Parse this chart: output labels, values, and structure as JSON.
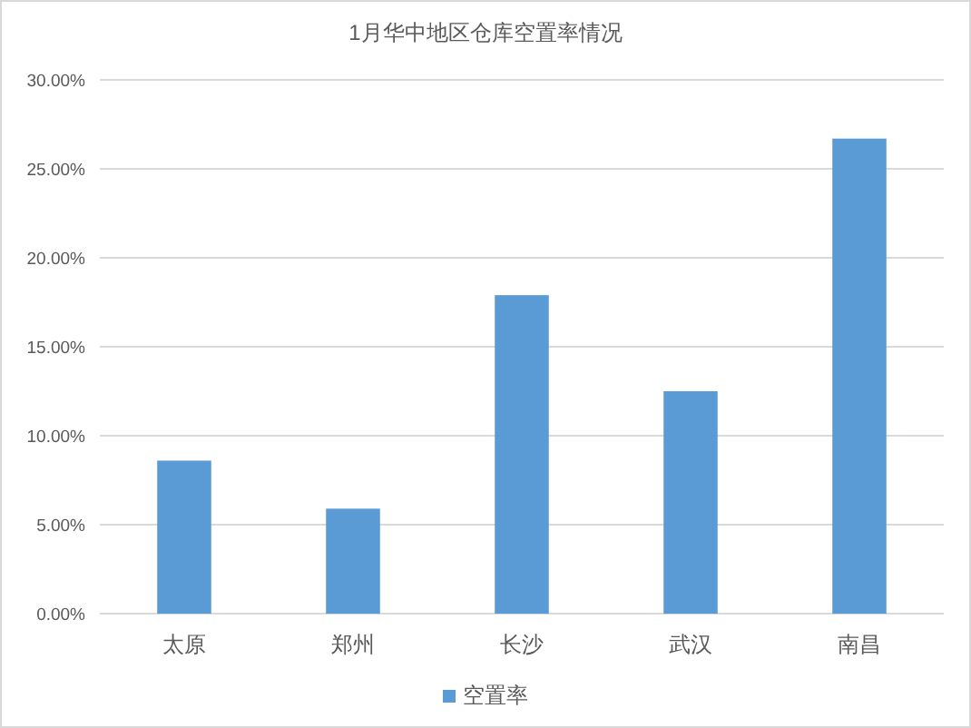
{
  "chart_data": {
    "type": "bar",
    "title": "1月华中地区仓库空置率情况",
    "categories": [
      "太原",
      "郑州",
      "长沙",
      "武汉",
      "南昌"
    ],
    "series": [
      {
        "name": "空置率",
        "color": "#5b9bd5",
        "values": [
          8.6,
          5.9,
          17.9,
          12.5,
          26.7
        ]
      }
    ],
    "ylim": [
      0,
      30
    ],
    "yticks": [
      {
        "value": 0,
        "label": "0.00%"
      },
      {
        "value": 5,
        "label": "5.00%"
      },
      {
        "value": 10,
        "label": "10.00%"
      },
      {
        "value": 15,
        "label": "15.00%"
      },
      {
        "value": 20,
        "label": "20.00%"
      },
      {
        "value": 25,
        "label": "25.00%"
      },
      {
        "value": 30,
        "label": "30.00%"
      }
    ],
    "grid": "y",
    "legend": "bottom"
  }
}
